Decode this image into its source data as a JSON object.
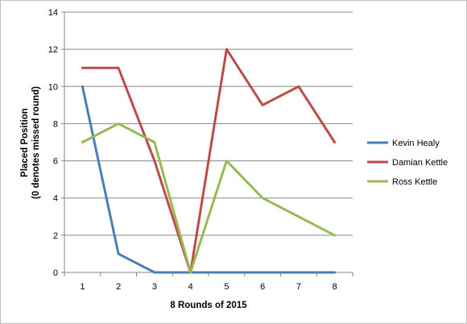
{
  "chart_data": {
    "type": "line",
    "title": "",
    "xlabel": "8 Rounds of 2015",
    "ylabel_lines": [
      "Placed Position",
      "(0 denotes missed round)"
    ],
    "categories": [
      "1",
      "2",
      "3",
      "4",
      "5",
      "6",
      "7",
      "8"
    ],
    "yticks": [
      "0",
      "2",
      "4",
      "6",
      "8",
      "10",
      "12",
      "14"
    ],
    "ylim": [
      0,
      14
    ],
    "grid": "horizontal",
    "legend_position": "right",
    "series": [
      {
        "name": "Kevin Healy",
        "color": "#4a7ebb",
        "values": [
          10,
          1,
          0,
          0,
          0,
          0,
          0,
          0
        ]
      },
      {
        "name": "Damian Kettle",
        "color": "#be4b48",
        "values": [
          11,
          11,
          6,
          0,
          12,
          9,
          10,
          7
        ]
      },
      {
        "name": "Ross Kettle",
        "color": "#98b954",
        "values": [
          7,
          8,
          7,
          0,
          6,
          4,
          3,
          2
        ]
      }
    ]
  }
}
